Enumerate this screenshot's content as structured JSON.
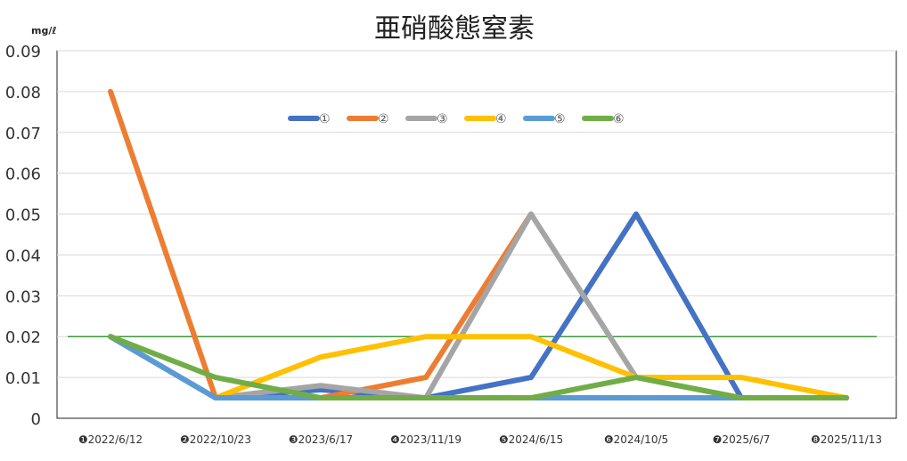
{
  "chart_data": {
    "type": "line",
    "title": "亜硝酸態窒素",
    "unit_label": "mg/ℓ",
    "categories": [
      "❶2022/6/12",
      "❷2022/10/23",
      "❸2023/6/17",
      "❹2023/11/19",
      "❺2024/6/15",
      "❻2024/10/5",
      "❼2025/6/7",
      "❽2025/11/13"
    ],
    "ylim": [
      0,
      0.09
    ],
    "yticks": [
      "0",
      "0.01",
      "0.02",
      "0.03",
      "0.04",
      "0.05",
      "0.06",
      "0.07",
      "0.08",
      "0.09"
    ],
    "grid": true,
    "legend_position": "top-center",
    "reference_line": {
      "value": 0.02,
      "color": "#3a9a3a"
    },
    "series": [
      {
        "name": "①",
        "color": "#4472c4",
        "values": [
          0.02,
          0.005,
          0.007,
          0.005,
          0.01,
          0.05,
          0.005,
          0.005
        ]
      },
      {
        "name": "②",
        "color": "#ed7d31",
        "values": [
          0.08,
          0.005,
          0.005,
          0.01,
          0.05,
          null,
          null,
          null
        ]
      },
      {
        "name": "③",
        "color": "#a5a5a5",
        "values": [
          0.02,
          0.005,
          0.008,
          0.005,
          0.05,
          0.01,
          0.005,
          0.005
        ]
      },
      {
        "name": "④",
        "color": "#ffc000",
        "values": [
          null,
          0.005,
          0.015,
          0.02,
          0.02,
          0.01,
          0.01,
          0.005
        ]
      },
      {
        "name": "⑤",
        "color": "#5b9bd5",
        "values": [
          0.02,
          0.005,
          0.005,
          0.005,
          0.005,
          0.005,
          0.005,
          0.005
        ]
      },
      {
        "name": "⑥",
        "color": "#70ad47",
        "values": [
          0.02,
          0.01,
          0.005,
          0.005,
          0.005,
          0.01,
          0.005,
          0.005
        ]
      }
    ]
  }
}
